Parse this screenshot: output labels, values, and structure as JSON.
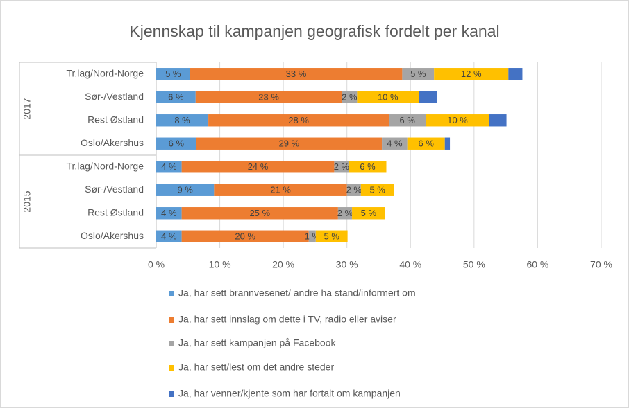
{
  "chart_data": {
    "type": "stacked-bar-horizontal",
    "title": "Kjennskap til kampanjen geografisk fordelt per kanal",
    "groups": [
      {
        "name": "2017",
        "categories": [
          "Tr.lag/Nord-Norge",
          "Sør-/Vestland",
          "Rest Østland",
          "Oslo/Akershus"
        ]
      },
      {
        "name": "2015",
        "categories": [
          "Tr.lag/Nord-Norge",
          "Sør-/Vestland",
          "Rest Østland",
          "Oslo/Akershus"
        ]
      }
    ],
    "series": [
      {
        "name": "Ja, har sett brannvesenet/ andre ha stand/informert om",
        "color": "#5b9bd5",
        "values": [
          5.3,
          6.2,
          8.2,
          6.3,
          4.0,
          9.1,
          4.0,
          4.0
        ],
        "value_labels": [
          "5 %",
          "6 %",
          "8 %",
          "6 %",
          "4 %",
          "9 %",
          "4 %",
          "4 %"
        ]
      },
      {
        "name": "Ja, har sett innslag om dette i TV, radio eller aviser",
        "color": "#ed7d31",
        "values": [
          33.4,
          23.0,
          28.4,
          29.2,
          24.0,
          20.9,
          24.6,
          20.0
        ],
        "value_labels": [
          "33 %",
          "23 %",
          "28 %",
          "29 %",
          "24 %",
          "21 %",
          "25 %",
          "20 %"
        ]
      },
      {
        "name": "Ja, har sett kampanjen på Facebook",
        "color": "#a5a5a5",
        "values": [
          5.0,
          2.4,
          5.8,
          4.0,
          2.3,
          2.2,
          2.2,
          1.1
        ],
        "value_labels": [
          "5 %",
          "2 %",
          "6 %",
          "4 %",
          "2 %",
          "2 %",
          "2 %",
          "1 %"
        ]
      },
      {
        "name": "Ja, har sett/lest om det andre steder",
        "color": "#ffc000",
        "values": [
          11.7,
          9.7,
          10.0,
          5.9,
          5.9,
          5.2,
          5.2,
          5.0
        ],
        "value_labels": [
          "12 %",
          "10 %",
          "10 %",
          "6 %",
          "6 %",
          "5 %",
          "5 %",
          "5 %"
        ]
      },
      {
        "name": "Ja, har venner/kjente som har fortalt om kampanjen",
        "color": "#4472c4",
        "values": [
          2.2,
          2.9,
          2.7,
          0.8,
          null,
          null,
          null,
          null
        ]
      }
    ],
    "xlim": [
      0,
      70
    ],
    "xticks": [
      {
        "value": 0,
        "label": "0 %"
      },
      {
        "value": 10,
        "label": "10 %"
      },
      {
        "value": 20,
        "label": "20 %"
      },
      {
        "value": 30,
        "label": "30 %"
      },
      {
        "value": 40,
        "label": "40 %"
      },
      {
        "value": 50,
        "label": "50 %"
      },
      {
        "value": 60,
        "label": "60 %"
      },
      {
        "value": 70,
        "label": "70 %"
      }
    ],
    "grid": true,
    "legend": "bottom"
  }
}
